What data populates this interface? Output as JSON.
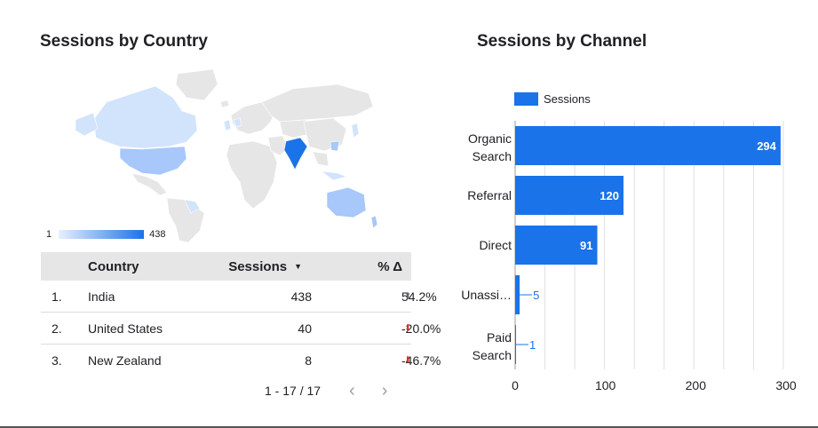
{
  "left_panel": {
    "title": "Sessions by Country",
    "scale": {
      "min": "1",
      "max": "438"
    },
    "table": {
      "columns": [
        "Country",
        "Sessions",
        "% Δ"
      ],
      "rows": [
        {
          "index": "1.",
          "country": "India",
          "sessions": "438",
          "delta": "54.2%",
          "trend": "up"
        },
        {
          "index": "2.",
          "country": "United States",
          "sessions": "40",
          "delta": "-20.0%",
          "trend": "down"
        },
        {
          "index": "3.",
          "country": "New Zealand",
          "sessions": "8",
          "delta": "-46.7%",
          "trend": "down"
        }
      ]
    },
    "pagination": "1 - 17 / 17",
    "icons": {
      "sort": "sort-descending-icon",
      "prev": "chevron-left-icon",
      "next": "chevron-right-icon",
      "up": "arrow-up-icon",
      "down": "arrow-down-icon"
    }
  },
  "right_panel": {
    "title": "Sessions by Channel"
  },
  "colors": {
    "bar": "#1a73e8",
    "map_high": "#1a73e8",
    "map_low": "#d2e3fc",
    "map_none": "#e6e6e6",
    "down": "#d93025"
  },
  "chart_data": {
    "type": "bar",
    "orientation": "horizontal",
    "categories": [
      "Organic Search",
      "Referral",
      "Direct",
      "Unassi…",
      "Paid Search"
    ],
    "series": [
      {
        "name": "Sessions",
        "values": [
          294,
          120,
          91,
          5,
          1
        ]
      }
    ],
    "xlim": [
      0,
      300
    ],
    "xticks": [
      0,
      100,
      200,
      300
    ],
    "grid": true,
    "legend": "top-left",
    "data_labels": true
  }
}
